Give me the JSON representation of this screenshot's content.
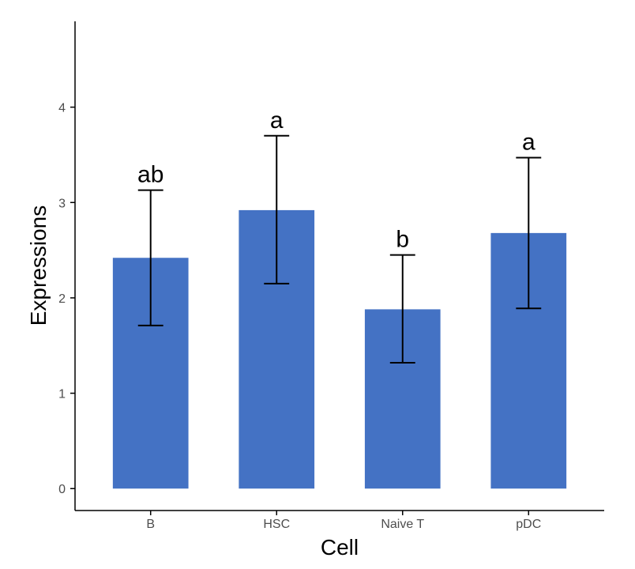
{
  "chart_data": {
    "type": "bar",
    "title": "",
    "xlabel": "Cell",
    "ylabel": "Expressions",
    "categories": [
      "B",
      "HSC",
      "Naive T",
      "pDC"
    ],
    "values": [
      2.42,
      2.92,
      1.88,
      2.68
    ],
    "error_low": [
      1.71,
      2.15,
      1.32,
      1.89
    ],
    "error_high": [
      3.13,
      3.7,
      2.45,
      3.47
    ],
    "significance_labels": [
      "ab",
      "a",
      "b",
      "a"
    ],
    "ylim": [
      -0.23,
      4.9
    ],
    "yticks": [
      0,
      1,
      2,
      3,
      4
    ],
    "ytick_labels": [
      "0",
      "1",
      "2",
      "3",
      "4"
    ],
    "grid": false,
    "bar_color": "#4472C4",
    "errorbar_color": "#000000"
  }
}
